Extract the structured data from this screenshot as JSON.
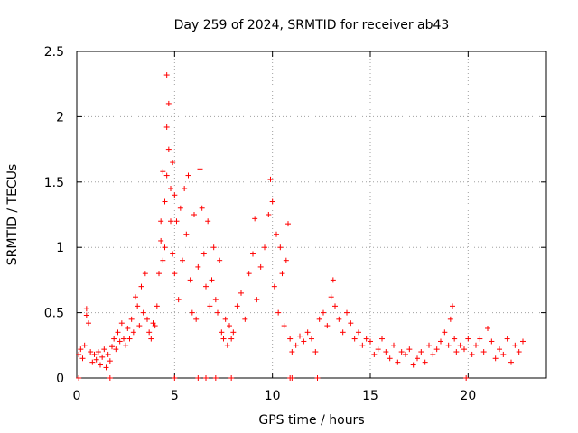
{
  "chart_data": {
    "type": "scatter",
    "title": "Day 259 of 2024, SRMTID for receiver ab43",
    "xlabel": "GPS time / hours",
    "ylabel": "SRMTID / TECUs",
    "xlim": [
      0,
      24
    ],
    "ylim": [
      0,
      2.5
    ],
    "xticks": [
      0,
      5,
      10,
      15,
      20
    ],
    "yticks": [
      0,
      0.5,
      1,
      1.5,
      2,
      2.5
    ],
    "ytick_labels": [
      "0",
      "0.5",
      "1",
      "1.5",
      "2",
      "2.5"
    ],
    "grid": true,
    "marker": "+",
    "color": "#ff0000",
    "series": [
      {
        "name": "SRMTID",
        "points": [
          [
            0.1,
            0.18
          ],
          [
            0.2,
            0.22
          ],
          [
            0.3,
            0.15
          ],
          [
            0.4,
            0.25
          ],
          [
            0.5,
            0.48
          ],
          [
            0.5,
            0.53
          ],
          [
            0.6,
            0.42
          ],
          [
            0.7,
            0.2
          ],
          [
            0.8,
            0.12
          ],
          [
            0.9,
            0.18
          ],
          [
            1.0,
            0.14
          ],
          [
            1.1,
            0.2
          ],
          [
            1.2,
            0.1
          ],
          [
            1.3,
            0.16
          ],
          [
            1.4,
            0.22
          ],
          [
            1.5,
            0.08
          ],
          [
            1.6,
            0.18
          ],
          [
            1.7,
            0.13
          ],
          [
            1.8,
            0.24
          ],
          [
            1.9,
            0.3
          ],
          [
            2.0,
            0.22
          ],
          [
            2.1,
            0.35
          ],
          [
            2.2,
            0.28
          ],
          [
            2.3,
            0.42
          ],
          [
            2.4,
            0.3
          ],
          [
            2.5,
            0.25
          ],
          [
            2.6,
            0.38
          ],
          [
            2.7,
            0.3
          ],
          [
            2.8,
            0.45
          ],
          [
            2.9,
            0.35
          ],
          [
            3.0,
            0.62
          ],
          [
            3.1,
            0.55
          ],
          [
            3.2,
            0.4
          ],
          [
            3.3,
            0.7
          ],
          [
            3.4,
            0.5
          ],
          [
            3.5,
            0.8
          ],
          [
            3.6,
            0.45
          ],
          [
            3.7,
            0.35
          ],
          [
            3.8,
            0.3
          ],
          [
            3.9,
            0.42
          ],
          [
            4.0,
            0.4
          ],
          [
            4.1,
            0.55
          ],
          [
            4.2,
            0.8
          ],
          [
            4.3,
            1.05
          ],
          [
            4.3,
            1.2
          ],
          [
            4.4,
            0.9
          ],
          [
            4.4,
            1.58
          ],
          [
            4.5,
            1.35
          ],
          [
            4.5,
            1.0
          ],
          [
            4.6,
            1.55
          ],
          [
            4.6,
            1.92
          ],
          [
            4.6,
            2.32
          ],
          [
            4.7,
            2.1
          ],
          [
            4.7,
            1.75
          ],
          [
            4.8,
            1.45
          ],
          [
            4.8,
            1.2
          ],
          [
            4.9,
            1.65
          ],
          [
            4.9,
            0.95
          ],
          [
            5.0,
            1.4
          ],
          [
            5.0,
            0.8
          ],
          [
            5.1,
            1.2
          ],
          [
            5.2,
            0.6
          ],
          [
            5.3,
            1.3
          ],
          [
            5.4,
            0.9
          ],
          [
            5.5,
            1.45
          ],
          [
            5.6,
            1.1
          ],
          [
            5.7,
            1.55
          ],
          [
            5.8,
            0.75
          ],
          [
            5.9,
            0.5
          ],
          [
            6.0,
            1.25
          ],
          [
            6.1,
            0.45
          ],
          [
            6.2,
            0.85
          ],
          [
            6.3,
            1.6
          ],
          [
            6.4,
            1.3
          ],
          [
            6.5,
            0.95
          ],
          [
            6.6,
            0.7
          ],
          [
            6.7,
            1.2
          ],
          [
            6.8,
            0.55
          ],
          [
            6.9,
            0.75
          ],
          [
            7.0,
            1.0
          ],
          [
            7.1,
            0.6
          ],
          [
            7.2,
            0.5
          ],
          [
            7.3,
            0.9
          ],
          [
            7.4,
            0.35
          ],
          [
            7.5,
            0.3
          ],
          [
            7.6,
            0.45
          ],
          [
            7.7,
            0.25
          ],
          [
            7.8,
            0.4
          ],
          [
            7.9,
            0.3
          ],
          [
            8.0,
            0.35
          ],
          [
            8.2,
            0.55
          ],
          [
            8.4,
            0.65
          ],
          [
            8.6,
            0.45
          ],
          [
            8.8,
            0.8
          ],
          [
            9.0,
            0.95
          ],
          [
            9.1,
            1.22
          ],
          [
            9.2,
            0.6
          ],
          [
            9.4,
            0.85
          ],
          [
            9.6,
            1.0
          ],
          [
            9.8,
            1.25
          ],
          [
            9.9,
            1.52
          ],
          [
            10.0,
            1.35
          ],
          [
            10.1,
            0.7
          ],
          [
            10.2,
            1.1
          ],
          [
            10.3,
            0.5
          ],
          [
            10.4,
            1.0
          ],
          [
            10.5,
            0.8
          ],
          [
            10.6,
            0.4
          ],
          [
            10.7,
            0.9
          ],
          [
            10.8,
            1.18
          ],
          [
            10.9,
            0.3
          ],
          [
            11.0,
            0.2
          ],
          [
            11.2,
            0.25
          ],
          [
            11.4,
            0.32
          ],
          [
            11.6,
            0.28
          ],
          [
            11.8,
            0.35
          ],
          [
            12.0,
            0.3
          ],
          [
            12.2,
            0.2
          ],
          [
            12.4,
            0.45
          ],
          [
            12.6,
            0.5
          ],
          [
            12.8,
            0.4
          ],
          [
            13.0,
            0.62
          ],
          [
            13.1,
            0.75
          ],
          [
            13.2,
            0.55
          ],
          [
            13.4,
            0.45
          ],
          [
            13.6,
            0.35
          ],
          [
            13.8,
            0.5
          ],
          [
            14.0,
            0.42
          ],
          [
            14.2,
            0.3
          ],
          [
            14.4,
            0.35
          ],
          [
            14.6,
            0.25
          ],
          [
            14.8,
            0.3
          ],
          [
            15.0,
            0.28
          ],
          [
            15.2,
            0.18
          ],
          [
            15.4,
            0.22
          ],
          [
            15.6,
            0.3
          ],
          [
            15.8,
            0.2
          ],
          [
            16.0,
            0.15
          ],
          [
            16.2,
            0.25
          ],
          [
            16.4,
            0.12
          ],
          [
            16.6,
            0.2
          ],
          [
            16.8,
            0.18
          ],
          [
            17.0,
            0.22
          ],
          [
            17.2,
            0.1
          ],
          [
            17.4,
            0.15
          ],
          [
            17.6,
            0.2
          ],
          [
            17.8,
            0.12
          ],
          [
            18.0,
            0.25
          ],
          [
            18.2,
            0.18
          ],
          [
            18.4,
            0.22
          ],
          [
            18.6,
            0.28
          ],
          [
            18.8,
            0.35
          ],
          [
            19.0,
            0.25
          ],
          [
            19.1,
            0.45
          ],
          [
            19.2,
            0.55
          ],
          [
            19.3,
            0.3
          ],
          [
            19.4,
            0.2
          ],
          [
            19.6,
            0.25
          ],
          [
            19.8,
            0.22
          ],
          [
            20.0,
            0.3
          ],
          [
            20.2,
            0.18
          ],
          [
            20.4,
            0.25
          ],
          [
            20.6,
            0.3
          ],
          [
            20.8,
            0.2
          ],
          [
            21.0,
            0.38
          ],
          [
            21.2,
            0.28
          ],
          [
            21.4,
            0.15
          ],
          [
            21.6,
            0.22
          ],
          [
            21.8,
            0.18
          ],
          [
            22.0,
            0.3
          ],
          [
            22.2,
            0.12
          ],
          [
            22.4,
            0.25
          ],
          [
            22.6,
            0.2
          ],
          [
            22.8,
            0.28
          ],
          [
            0.1,
            0.0
          ],
          [
            1.7,
            0.0
          ],
          [
            5.0,
            0.0
          ],
          [
            6.2,
            0.0
          ],
          [
            6.6,
            0.0
          ],
          [
            7.1,
            0.0
          ],
          [
            7.9,
            0.0
          ],
          [
            10.9,
            0.0
          ],
          [
            11.0,
            0.0
          ],
          [
            12.3,
            0.0
          ],
          [
            19.9,
            0.0
          ]
        ]
      }
    ]
  }
}
